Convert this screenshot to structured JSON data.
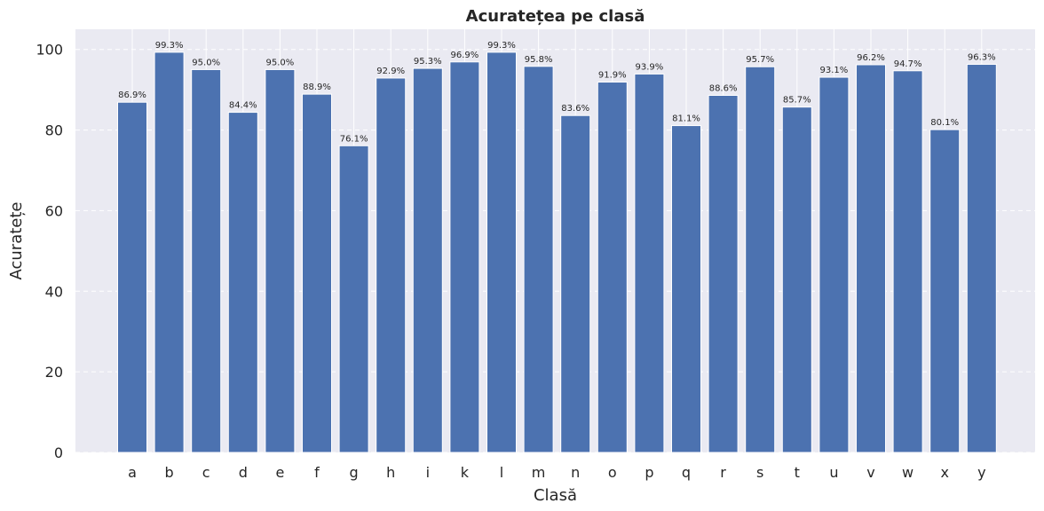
{
  "chart_data": {
    "type": "bar",
    "title": "Acuratețea pe clasă",
    "xlabel": "Clasă",
    "ylabel": "Acuratețe",
    "categories": [
      "a",
      "b",
      "c",
      "d",
      "e",
      "f",
      "g",
      "h",
      "i",
      "k",
      "l",
      "m",
      "n",
      "o",
      "p",
      "q",
      "r",
      "s",
      "t",
      "u",
      "v",
      "w",
      "x",
      "y"
    ],
    "values": [
      86.9,
      99.3,
      95.0,
      84.4,
      95.0,
      88.9,
      76.1,
      92.9,
      95.3,
      96.9,
      99.3,
      95.8,
      83.6,
      91.9,
      93.9,
      81.1,
      88.6,
      95.7,
      85.7,
      93.1,
      96.2,
      94.7,
      80.1,
      96.3
    ],
    "data_labels": [
      "86.9%",
      "99.3%",
      "95.0%",
      "84.4%",
      "95.0%",
      "88.9%",
      "76.1%",
      "92.9%",
      "95.3%",
      "96.9%",
      "99.3%",
      "95.8%",
      "83.6%",
      "91.9%",
      "93.9%",
      "81.1%",
      "88.6%",
      "95.7%",
      "85.7%",
      "93.1%",
      "96.2%",
      "94.7%",
      "80.1%",
      "96.3%"
    ],
    "yticks": [
      "0",
      "20",
      "40",
      "60",
      "80",
      "100"
    ],
    "ylim": [
      0,
      105
    ],
    "grid": true,
    "grid_style": "dashed horizontal, solid vertical",
    "colors": {
      "bar": "#4c72b0",
      "plot_background": "#eaeaf2",
      "grid": "#ffffff",
      "text": "#262626"
    }
  }
}
